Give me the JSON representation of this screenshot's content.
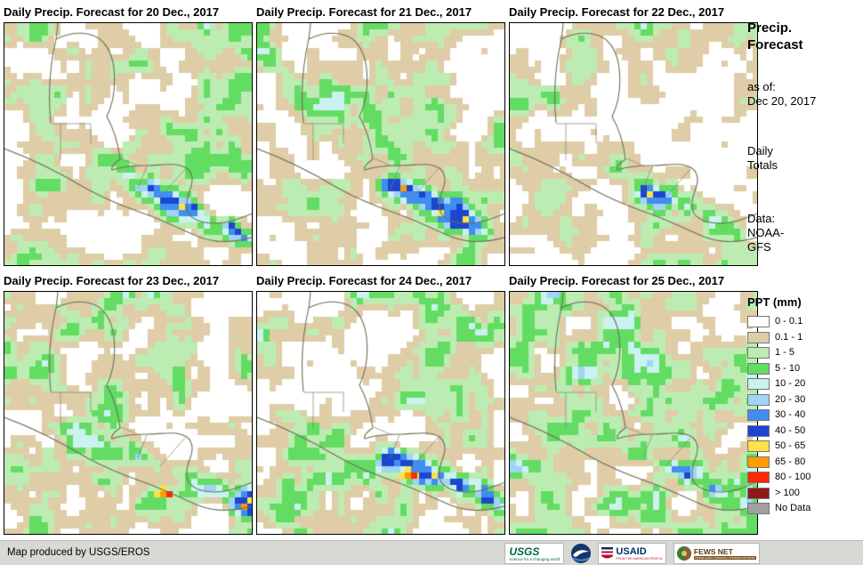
{
  "panels": [
    {
      "title": "Daily Precip. Forecast for 20 Dec., 2017"
    },
    {
      "title": "Daily Precip. Forecast for 21 Dec., 2017"
    },
    {
      "title": "Daily Precip. Forecast for 22 Dec., 2017"
    },
    {
      "title": "Daily Precip. Forecast for 23 Dec., 2017"
    },
    {
      "title": "Daily Precip. Forecast for 24 Dec., 2017"
    },
    {
      "title": "Daily Precip. Forecast for 25 Dec., 2017"
    }
  ],
  "sidebar": {
    "title": "Precip.\nForecast",
    "as_of": "as of:\nDec 20, 2017",
    "totals": "Daily\nTotals",
    "data_source": "Data:\nNOAA-\nGFS"
  },
  "legend": {
    "title": "PPT (mm)",
    "entries": [
      {
        "label": "0 - 0.1",
        "color": "#ffffff"
      },
      {
        "label": "0.1 - 1",
        "color": "#decda6"
      },
      {
        "label": "1 - 5",
        "color": "#bdecb2"
      },
      {
        "label": "5 - 10",
        "color": "#63dc63"
      },
      {
        "label": "10 - 20",
        "color": "#c9f2f0"
      },
      {
        "label": "20 - 30",
        "color": "#9fd4f5"
      },
      {
        "label": "30 - 40",
        "color": "#3f8ef0"
      },
      {
        "label": "40 - 50",
        "color": "#1c46d0"
      },
      {
        "label": "50 - 65",
        "color": "#ffe14a"
      },
      {
        "label": "65 - 80",
        "color": "#ff9c00"
      },
      {
        "label": "80 - 100",
        "color": "#ff2800"
      },
      {
        "label": "> 100",
        "color": "#8e1a15"
      },
      {
        "label": "No Data",
        "color": "#a0a0a0"
      }
    ]
  },
  "footer": {
    "credit": "Map produced by USGS/EROS",
    "logos": [
      {
        "name": "USGS",
        "text": "USGS",
        "tagline": "science for a changing world"
      },
      {
        "name": "NOAA"
      },
      {
        "name": "USAID",
        "text": "USAID",
        "tagline": "FROM THE AMERICAN PEOPLE"
      },
      {
        "name": "FEWS NET",
        "text": "FEWS NET",
        "tagline": "FAMINE EARLY WARNING SYSTEMS NETWORK"
      }
    ]
  }
}
